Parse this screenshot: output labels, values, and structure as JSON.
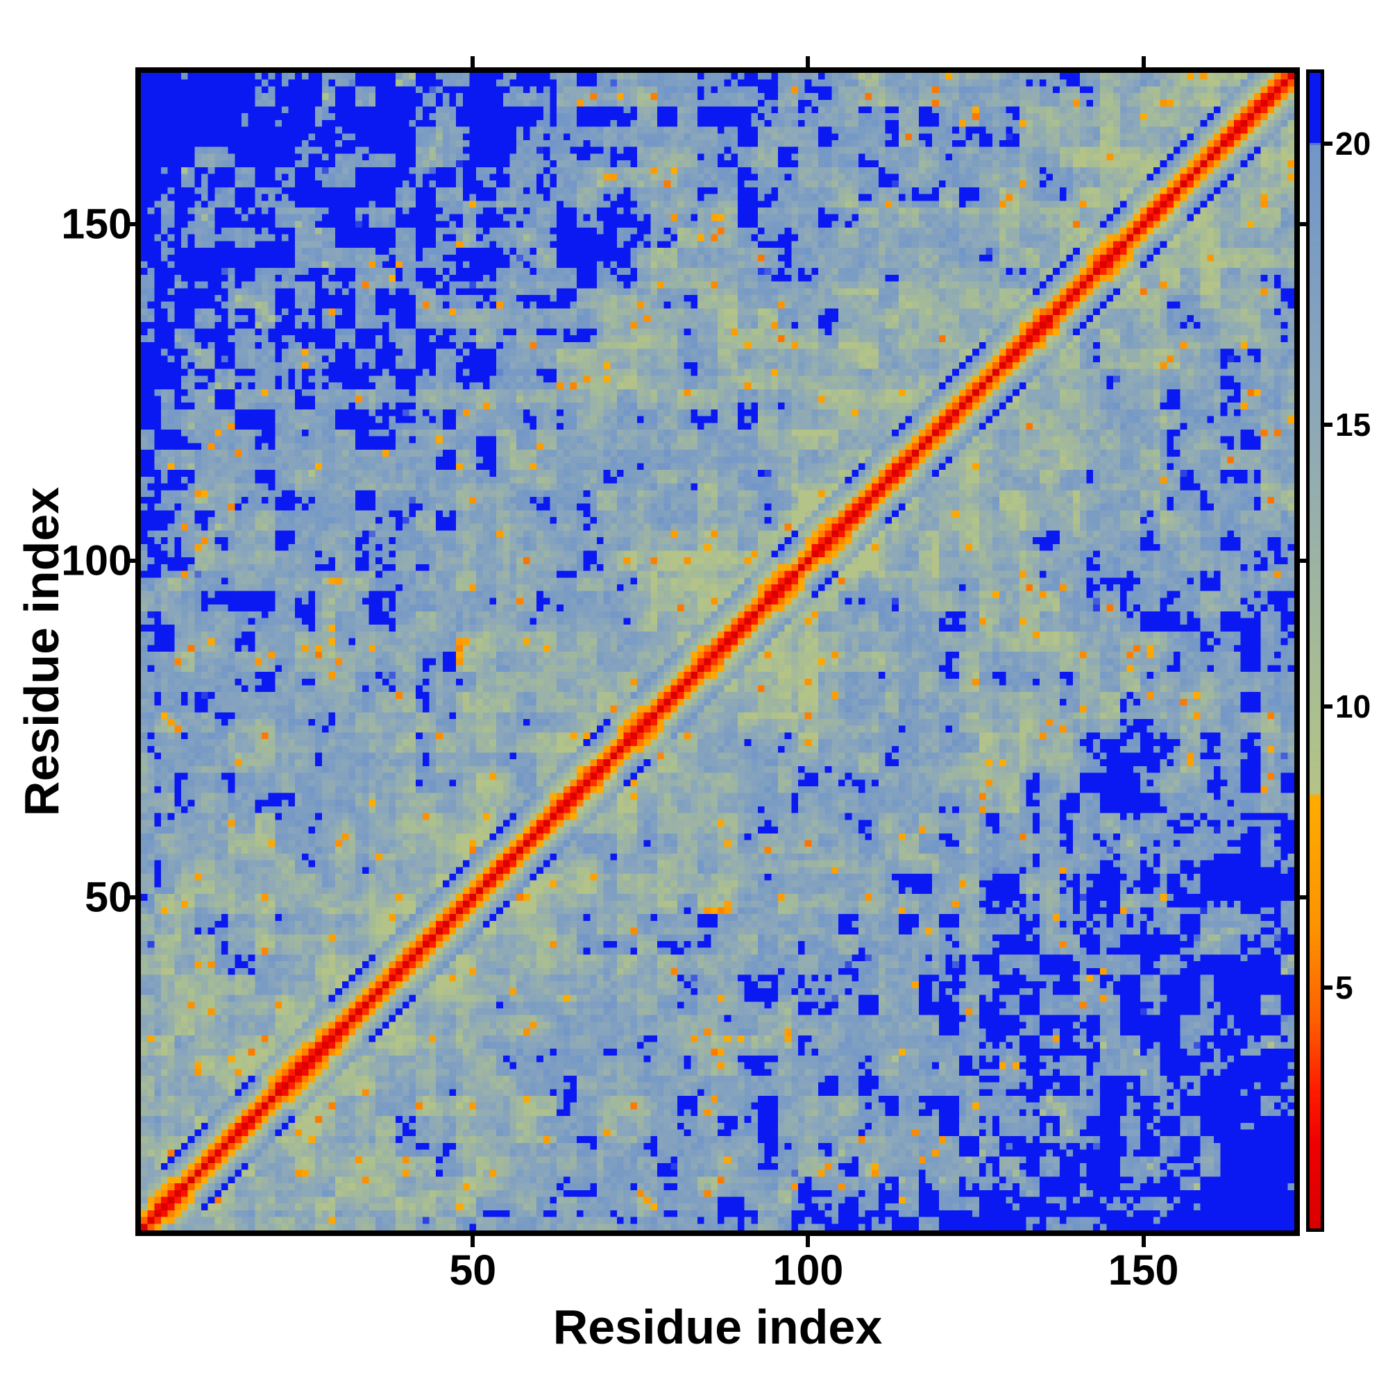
{
  "chart_data": {
    "type": "heatmap",
    "title": "",
    "xlabel": "Residue index",
    "ylabel": "Residue index",
    "x_ticks": [
      50,
      100,
      150
    ],
    "y_ticks": [
      50,
      100,
      150
    ],
    "axis_min": 1,
    "axis_max": 172,
    "n_residues": 172,
    "grid": false,
    "legend": "none",
    "colorbar": {
      "position": "right",
      "ticks": [
        5,
        10,
        15,
        20
      ],
      "vmin": 0.72,
      "vmax": 21.26,
      "over_color": "#0a18f2"
    },
    "colormap_stops": [
      [
        0.7,
        "#da0000"
      ],
      [
        2.2,
        "#f00000"
      ],
      [
        3.2,
        "#ff1e00"
      ],
      [
        4.4,
        "#fe5f00"
      ],
      [
        6.0,
        "#fd9200"
      ],
      [
        8.4,
        "#ffac00"
      ],
      [
        8.45,
        "#b5c487"
      ],
      [
        10.2,
        "#a9be92"
      ],
      [
        12.5,
        "#9db4a4"
      ],
      [
        15.5,
        "#8ba7bb"
      ],
      [
        20.0,
        "#7296c8"
      ],
      [
        20.05,
        "#0a18f2"
      ],
      [
        21.3,
        "#0a18f2"
      ]
    ],
    "matrix": {
      "encoding": "procedural-symmetric-distance-field",
      "symmetric": true,
      "seed": 7,
      "diagonal_band": {
        "base": 0.5,
        "slope": 2.9,
        "kmin": 0.8,
        "kvar": 0.5,
        "band_halfwidth": 6,
        "jitter": 1.2
      },
      "far_field": {
        "center": 13.0,
        "fmid": 0.42,
        "spread": 20,
        "neardiag_drop": 0.09,
        "neardiag_range": 30,
        "bias_cap": 7.5,
        "bias_scale": 9,
        "bias_range": 150,
        "bias_pow": 1.6,
        "corner_extra": 2.5,
        "corner_s": 150,
        "blue_cut": 20.3,
        "min_clamp": 8.6
      },
      "contacts": {
        "threshold": 0.945,
        "fmax": 0.52,
        "smax": 110,
        "vbase": 5.0,
        "vvar": 3.4
      },
      "mid_speckle": {
        "threshold": 0.9,
        "fmax": 0.42,
        "vbase": 9.0,
        "vvar": 2.5
      }
    }
  },
  "layout_text": {
    "x_tick_labels": [
      "50",
      "100",
      "150"
    ],
    "y_tick_labels": [
      "50",
      "100",
      "150"
    ],
    "colorbar_tick_labels": [
      "5",
      "10",
      "15",
      "20"
    ]
  }
}
